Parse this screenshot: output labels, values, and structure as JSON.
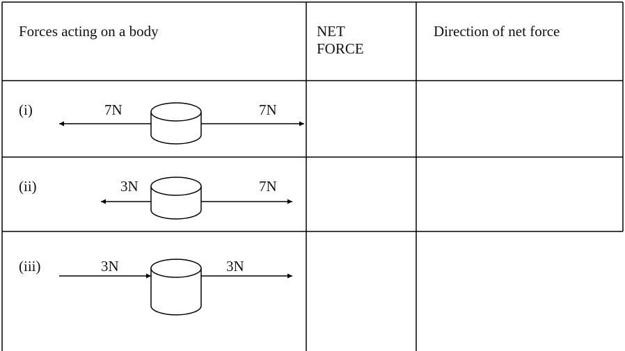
{
  "table": {
    "header": [
      "Forces acting on a body",
      "NET FORCE",
      "Direction of net force"
    ],
    "rows": [
      {
        "label": "(i)",
        "left_force": "7N",
        "right_force": "7N"
      },
      {
        "label": "(ii)",
        "left_force": "3N",
        "right_force": "7N"
      },
      {
        "label": "(iii)",
        "left_force": "3N",
        "right_force": "3N"
      }
    ]
  }
}
